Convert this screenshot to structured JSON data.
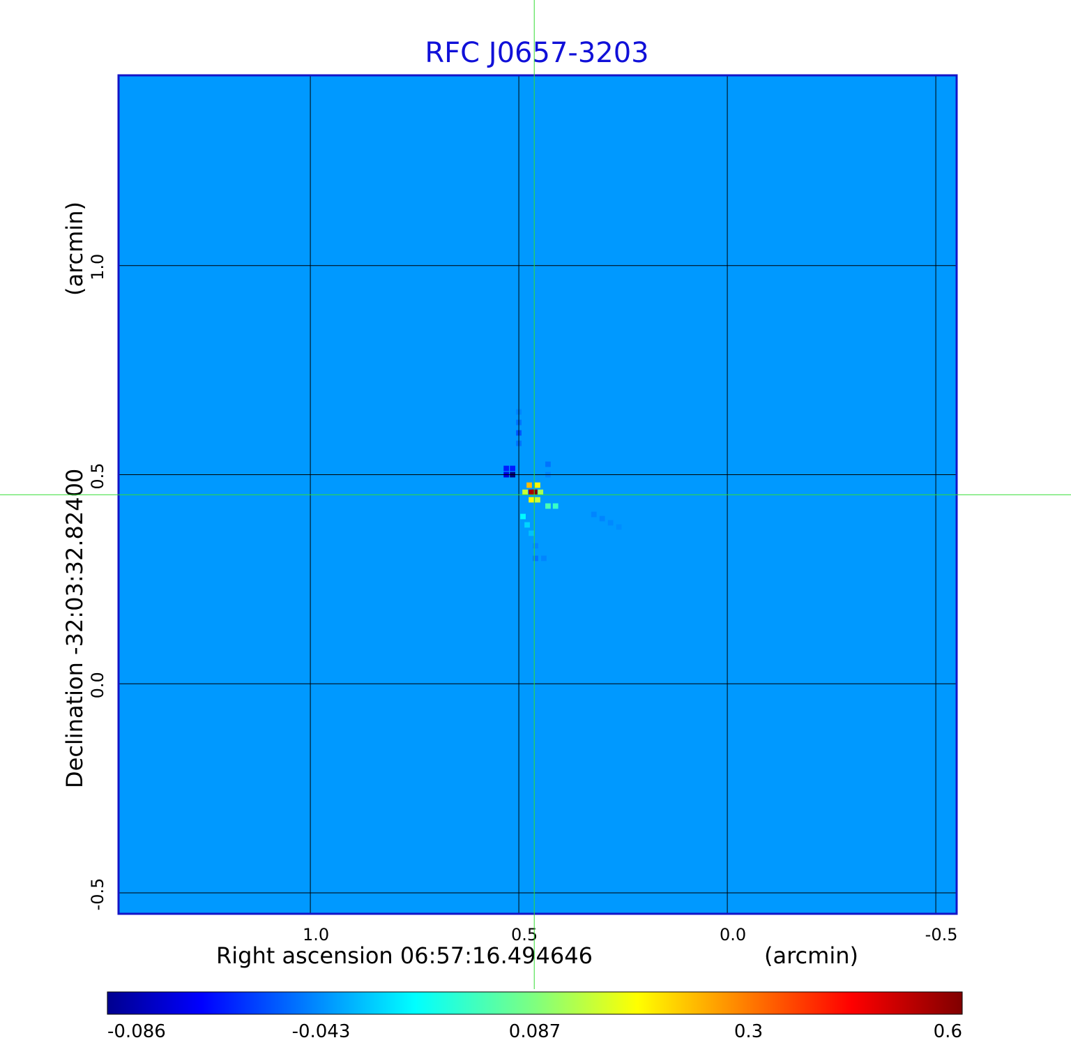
{
  "chart_data": {
    "type": "heatmap",
    "title": "RFC J0657-3203",
    "title_color": "#1010d8",
    "frame_color": "#1414c8",
    "crosshair_color": "#33dd33",
    "grid_color": "#000000",
    "background_value": -0.03,
    "xlabel": "Right ascension  06:57:16.494646",
    "xunit": "(arcmin)",
    "ylabel": "Declination  -32:03:32.82400",
    "yunit": "(arcmin)",
    "x_ticks": [
      {
        "value": 1.0,
        "label": "1.0"
      },
      {
        "value": 0.5,
        "label": "0.5"
      },
      {
        "value": 0.0,
        "label": "0.0"
      },
      {
        "value": -0.5,
        "label": "-0.5"
      }
    ],
    "y_ticks": [
      {
        "value": 1.0,
        "label": "1.0"
      },
      {
        "value": 0.5,
        "label": "0.5"
      },
      {
        "value": 0.0,
        "label": "0.0"
      },
      {
        "value": -0.5,
        "label": "-0.5"
      }
    ],
    "xlim": [
      1.46,
      -0.55
    ],
    "ylim": [
      -0.55,
      1.455
    ],
    "crosshair": {
      "x": 0.463,
      "y": 0.452
    },
    "grid": true,
    "colormap": "jet",
    "colorbar": {
      "orientation": "horizontal",
      "position": "bottom",
      "tick_labels": [
        "-0.086",
        "-0.043",
        "0.087",
        "0.3",
        "0.6"
      ]
    },
    "features": [
      {
        "x": 0.462,
        "y": 0.458,
        "value": 0.6
      },
      {
        "x": 0.47,
        "y": 0.458,
        "value": 0.55
      },
      {
        "x": 0.475,
        "y": 0.475,
        "value": 0.25
      },
      {
        "x": 0.455,
        "y": 0.475,
        "value": 0.2
      },
      {
        "x": 0.47,
        "y": 0.44,
        "value": 0.2
      },
      {
        "x": 0.455,
        "y": 0.44,
        "value": 0.15
      },
      {
        "x": 0.485,
        "y": 0.458,
        "value": 0.15
      },
      {
        "x": 0.448,
        "y": 0.458,
        "value": 0.12
      },
      {
        "x": 0.43,
        "y": 0.425,
        "value": 0.06
      },
      {
        "x": 0.412,
        "y": 0.425,
        "value": 0.05
      },
      {
        "x": 0.515,
        "y": 0.5,
        "value": -0.086
      },
      {
        "x": 0.53,
        "y": 0.5,
        "value": -0.07
      },
      {
        "x": 0.53,
        "y": 0.515,
        "value": -0.06
      },
      {
        "x": 0.515,
        "y": 0.515,
        "value": -0.06
      },
      {
        "x": 0.5,
        "y": 0.6,
        "value": -0.05
      },
      {
        "x": 0.5,
        "y": 0.625,
        "value": -0.045
      },
      {
        "x": 0.5,
        "y": 0.575,
        "value": -0.045
      },
      {
        "x": 0.5,
        "y": 0.65,
        "value": -0.04
      },
      {
        "x": 0.43,
        "y": 0.525,
        "value": -0.045
      },
      {
        "x": 0.43,
        "y": 0.5,
        "value": -0.04
      },
      {
        "x": 0.46,
        "y": 0.3,
        "value": -0.045
      },
      {
        "x": 0.46,
        "y": 0.33,
        "value": -0.04
      },
      {
        "x": 0.44,
        "y": 0.3,
        "value": -0.04
      },
      {
        "x": 0.32,
        "y": 0.405,
        "value": -0.04
      },
      {
        "x": 0.3,
        "y": 0.395,
        "value": -0.04
      },
      {
        "x": 0.28,
        "y": 0.385,
        "value": -0.038
      },
      {
        "x": 0.26,
        "y": 0.375,
        "value": -0.036
      },
      {
        "x": 0.48,
        "y": 0.38,
        "value": 0.0
      },
      {
        "x": 0.47,
        "y": 0.36,
        "value": -0.01
      },
      {
        "x": 0.49,
        "y": 0.4,
        "value": 0.02
      }
    ]
  }
}
